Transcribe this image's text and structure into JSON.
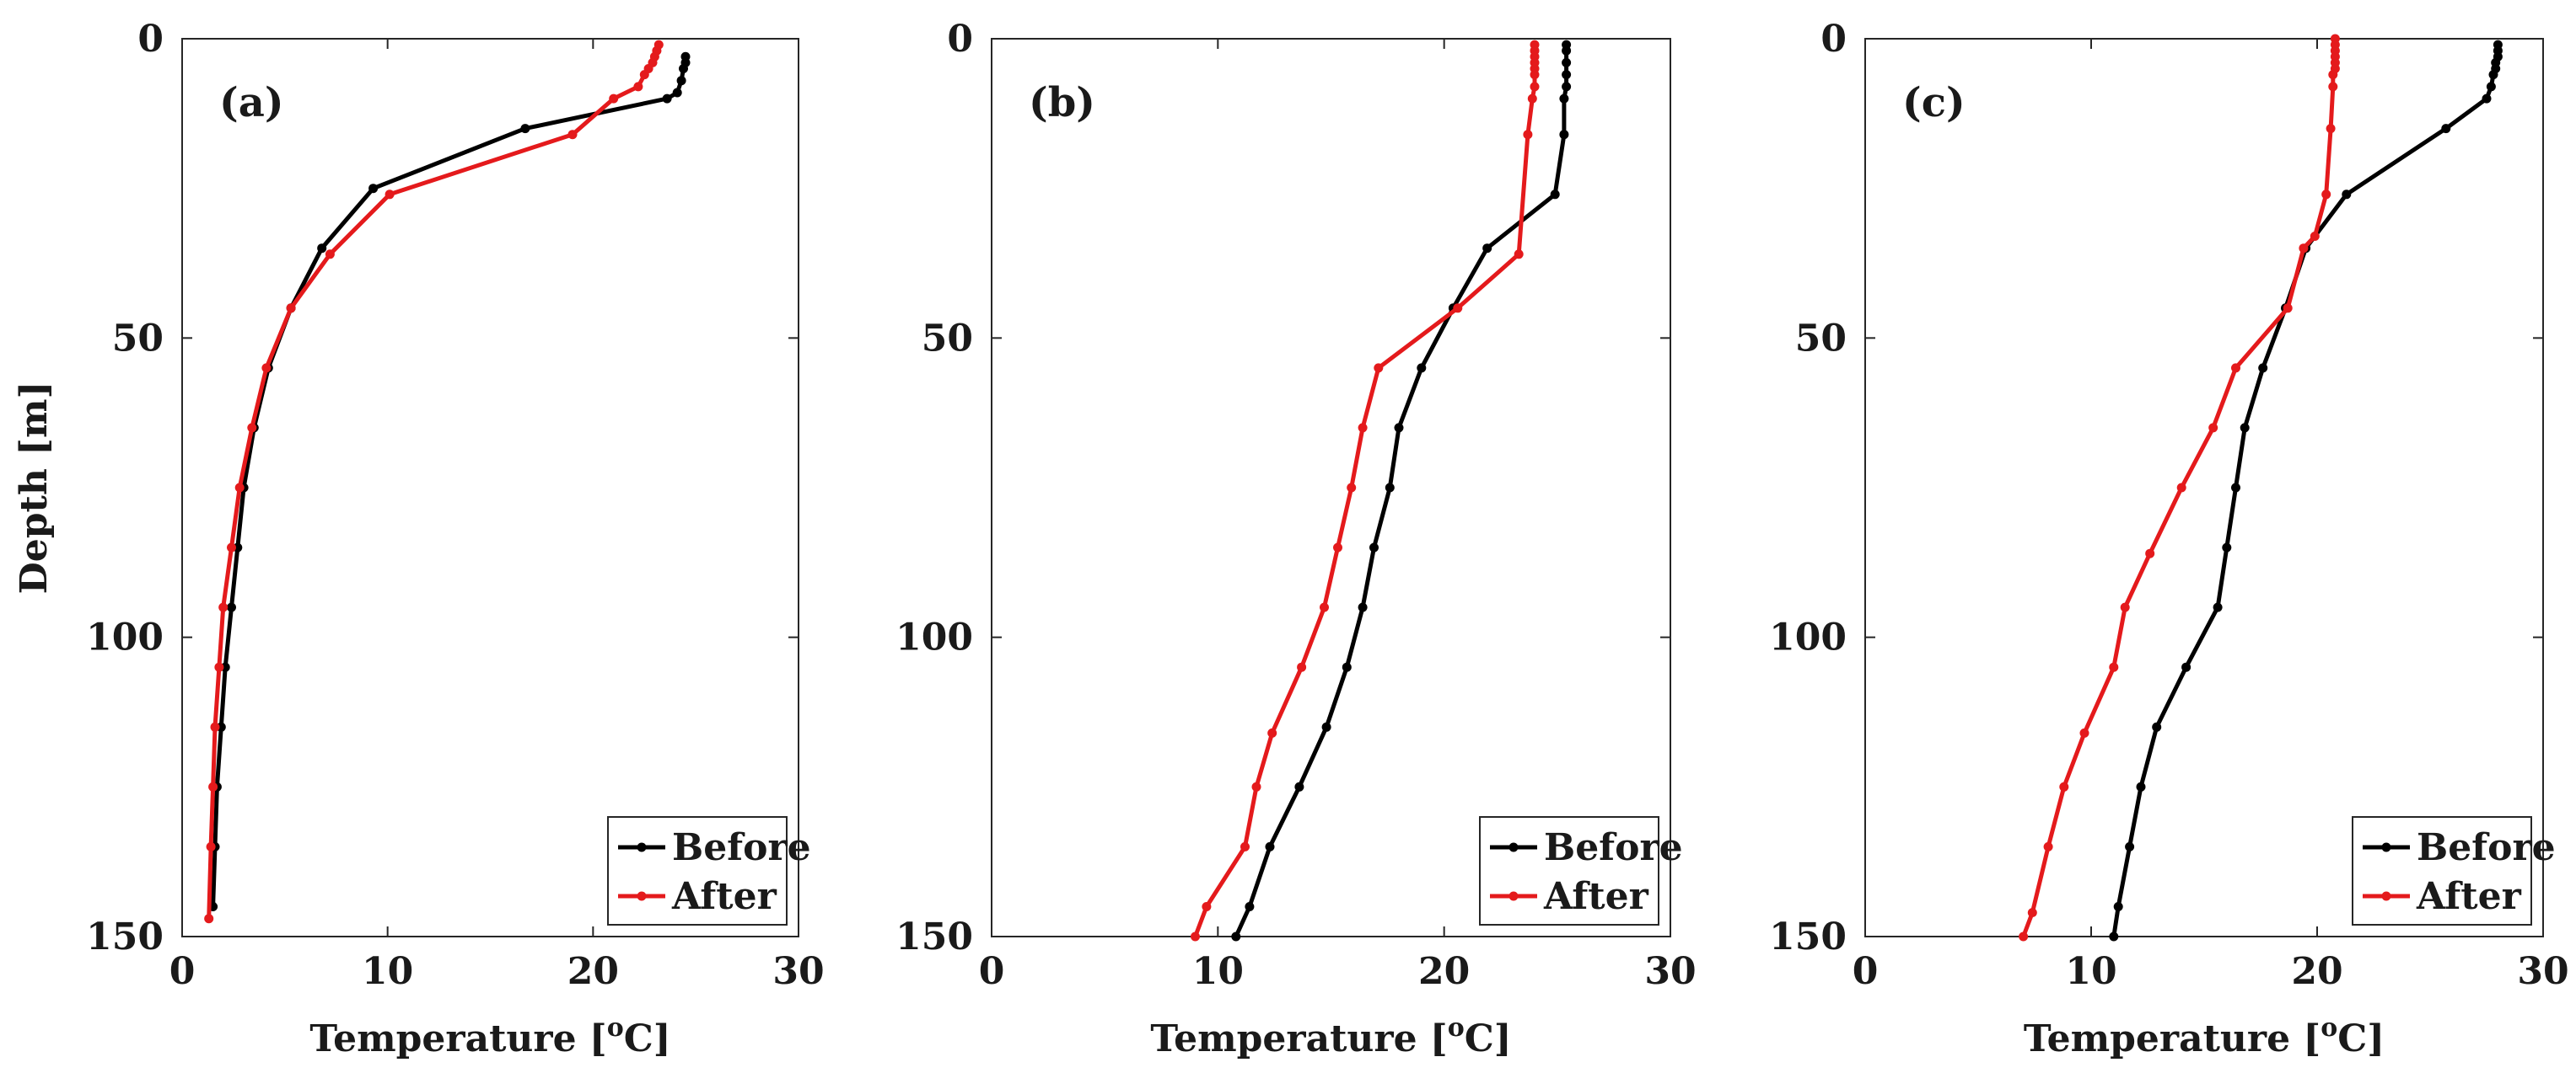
{
  "chart_data": [
    {
      "type": "line",
      "panel_label": "(a)",
      "xlabel": "Temperature [",
      "xlabel_sup": "o",
      "xlabel_end": "C]",
      "ylabel": "Depth [m]",
      "xlim": [
        0,
        30
      ],
      "ylim": [
        0,
        150
      ],
      "y_reversed": true,
      "xticks": [
        "0",
        "10",
        "20",
        "30"
      ],
      "yticks": [
        "0",
        "50",
        "100",
        "150"
      ],
      "legend_position": "bottom-right",
      "series": [
        {
          "name": "Before",
          "color": "#000000",
          "x": [
            24.5,
            24.5,
            24.4,
            24.3,
            24.1,
            23.6,
            16.7,
            9.3,
            6.8,
            5.3,
            4.2,
            3.5,
            3.0,
            2.7,
            2.4,
            2.1,
            1.9,
            1.7,
            1.6,
            1.5
          ],
          "y": [
            3,
            4,
            5,
            7,
            9,
            10,
            15,
            25,
            35,
            45,
            55,
            65,
            75,
            85,
            95,
            105,
            115,
            125,
            135,
            145
          ]
        },
        {
          "name": "After",
          "color": "#e41a1c",
          "x": [
            23.2,
            23.1,
            23.0,
            22.9,
            22.7,
            22.5,
            22.2,
            21.0,
            19.0,
            10.1,
            7.2,
            5.3,
            4.1,
            3.4,
            2.8,
            2.4,
            2.0,
            1.8,
            1.6,
            1.5,
            1.4,
            1.3
          ],
          "y": [
            1,
            2,
            3,
            4,
            5,
            6,
            8,
            10,
            16,
            26,
            36,
            45,
            55,
            65,
            75,
            85,
            95,
            105,
            115,
            125,
            135,
            147
          ]
        }
      ]
    },
    {
      "type": "line",
      "panel_label": "(b)",
      "xlabel": "Temperature [",
      "xlabel_sup": "o",
      "xlabel_end": "C]",
      "xlim": [
        0,
        30
      ],
      "ylim": [
        0,
        150
      ],
      "y_reversed": true,
      "xticks": [
        "0",
        "10",
        "20",
        "30"
      ],
      "yticks": [
        "0",
        "50",
        "100",
        "150"
      ],
      "legend_position": "bottom-right",
      "series": [
        {
          "name": "Before",
          "color": "#000000",
          "x": [
            25.4,
            25.4,
            25.4,
            25.4,
            25.4,
            25.3,
            25.3,
            24.9,
            21.9,
            20.4,
            19.0,
            18.0,
            17.6,
            16.9,
            16.4,
            15.7,
            14.8,
            13.6,
            12.3,
            11.4,
            10.8
          ],
          "y": [
            1,
            2,
            4,
            6,
            8,
            10,
            16,
            26,
            35,
            45,
            55,
            65,
            75,
            85,
            95,
            105,
            115,
            125,
            135,
            145,
            150
          ]
        },
        {
          "name": "After",
          "color": "#e41a1c",
          "x": [
            24.0,
            24.0,
            24.0,
            24.0,
            24.0,
            24.0,
            24.0,
            23.9,
            23.7,
            23.3,
            20.6,
            17.1,
            16.4,
            15.9,
            15.3,
            14.7,
            13.7,
            12.4,
            11.7,
            11.2,
            9.5,
            9.0
          ],
          "y": [
            1,
            2,
            3,
            4,
            5,
            6,
            8,
            10,
            16,
            36,
            45,
            55,
            65,
            75,
            85,
            95,
            105,
            116,
            125,
            135,
            145,
            150
          ]
        }
      ]
    },
    {
      "type": "line",
      "panel_label": "(c)",
      "xlabel": "Temperature [",
      "xlabel_sup": "o",
      "xlabel_end": "C]",
      "xlim": [
        0,
        30
      ],
      "ylim": [
        0,
        150
      ],
      "y_reversed": true,
      "xticks": [
        "0",
        "10",
        "20",
        "30"
      ],
      "yticks": [
        "0",
        "50",
        "100",
        "150"
      ],
      "legend_position": "bottom-right",
      "series": [
        {
          "name": "Before",
          "color": "#000000",
          "x": [
            28.0,
            28.0,
            28.0,
            27.9,
            27.9,
            27.8,
            27.7,
            27.5,
            25.7,
            21.3,
            19.5,
            18.6,
            17.6,
            16.8,
            16.4,
            16.0,
            15.6,
            14.2,
            12.9,
            12.2,
            11.7,
            11.2,
            11.0
          ],
          "y": [
            1,
            2,
            3,
            4,
            5,
            6,
            8,
            10,
            15,
            26,
            35,
            45,
            55,
            65,
            75,
            85,
            95,
            105,
            115,
            125,
            135,
            145,
            150
          ]
        },
        {
          "name": "After",
          "color": "#e41a1c",
          "x": [
            20.8,
            20.8,
            20.8,
            20.8,
            20.8,
            20.8,
            20.7,
            20.7,
            20.6,
            20.4,
            19.9,
            19.4,
            18.7,
            16.4,
            15.4,
            14.0,
            12.6,
            11.5,
            11.0,
            9.7,
            8.8,
            8.1,
            7.4,
            7.0
          ],
          "y": [
            0,
            1,
            2,
            3,
            4,
            5,
            6,
            8,
            15,
            26,
            33,
            35,
            45,
            55,
            65,
            75,
            86,
            95,
            105,
            116,
            125,
            135,
            146,
            150
          ]
        }
      ]
    }
  ]
}
